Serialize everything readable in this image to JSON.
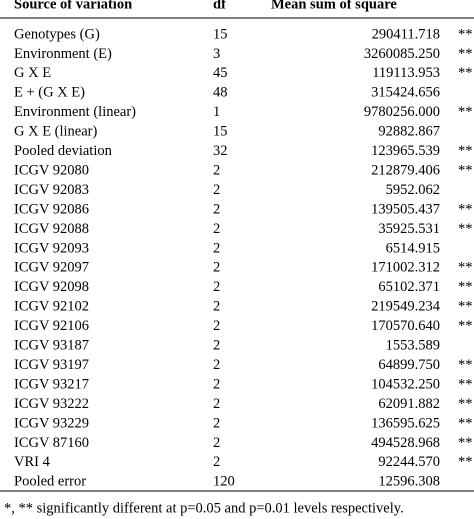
{
  "table": {
    "header": [
      "Source of variation",
      "df",
      "Mean sum of square"
    ],
    "rows": [
      [
        "Genotypes (G)",
        "15",
        "290411.718",
        "**"
      ],
      [
        "Environment (E)",
        "3",
        "3260085.250",
        "**"
      ],
      [
        "G X E",
        "45",
        "119113.953",
        "**"
      ],
      [
        "E + (G X E)",
        "48",
        "315424.656"
      ],
      [
        "Environment (linear)",
        "1",
        "9780256.000",
        "**"
      ],
      [
        "G X E (linear)",
        "15",
        "92882.867"
      ],
      [
        "Pooled deviation",
        "32",
        "123965.539",
        "**"
      ],
      [
        "ICGV 92080",
        "2",
        "212879.406",
        "**"
      ],
      [
        "ICGV 92083",
        "2",
        "5952.062"
      ],
      [
        "ICGV 92086",
        "2",
        "139505.437",
        "**"
      ],
      [
        "ICGV 92088",
        "2",
        "35925.531",
        "**"
      ],
      [
        "ICGV 92093",
        "2",
        "6514.915"
      ],
      [
        "ICGV 92097",
        "2",
        "171002.312",
        "**"
      ],
      [
        "ICGV 92098",
        "2",
        "65102.371",
        "**"
      ],
      [
        "ICGV 92102",
        "2",
        "219549.234",
        "**"
      ],
      [
        "ICGV 92106",
        "2",
        "170570.640",
        "**"
      ],
      [
        "ICGV 93187",
        "2",
        "1553.589"
      ],
      [
        "ICGV 93197",
        "2",
        "64899.750",
        "**"
      ],
      [
        "ICGV 93217",
        "2",
        "104532.250",
        "**"
      ],
      [
        "ICGV 93222",
        "2",
        "62091.882",
        "**"
      ],
      [
        "ICGV 93229",
        "2",
        "136595.625",
        "**"
      ],
      [
        "ICGV 87160",
        "2",
        "494528.968",
        "**"
      ],
      [
        "VRI 4",
        "2",
        "92244.570",
        "**"
      ],
      [
        "Pooled error",
        "120",
        "12596.308"
      ]
    ],
    "footnote": "*, ** significantly different at p=0.05 and p=0.01 levels respectively."
  }
}
